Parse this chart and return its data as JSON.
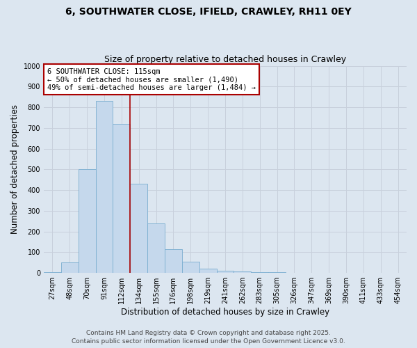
{
  "title_line1": "6, SOUTHWATER CLOSE, IFIELD, CRAWLEY, RH11 0EY",
  "title_line2": "Size of property relative to detached houses in Crawley",
  "xlabel": "Distribution of detached houses by size in Crawley",
  "ylabel": "Number of detached properties",
  "categories": [
    "27sqm",
    "48sqm",
    "70sqm",
    "91sqm",
    "112sqm",
    "134sqm",
    "155sqm",
    "176sqm",
    "198sqm",
    "219sqm",
    "241sqm",
    "262sqm",
    "283sqm",
    "305sqm",
    "326sqm",
    "347sqm",
    "369sqm",
    "390sqm",
    "411sqm",
    "433sqm",
    "454sqm"
  ],
  "values": [
    5,
    50,
    500,
    830,
    720,
    430,
    240,
    115,
    55,
    20,
    10,
    8,
    5,
    3,
    2,
    1,
    1,
    0,
    0,
    0,
    0
  ],
  "bar_color": "#c5d8ec",
  "bar_edgecolor": "#7aaed0",
  "vline_index": 4,
  "vline_color": "#aa0000",
  "annotation_text": "6 SOUTHWATER CLOSE: 115sqm\n← 50% of detached houses are smaller (1,490)\n49% of semi-detached houses are larger (1,484) →",
  "annotation_box_color": "#ffffff",
  "annotation_box_edgecolor": "#aa0000",
  "ylim": [
    0,
    1000
  ],
  "yticks": [
    0,
    100,
    200,
    300,
    400,
    500,
    600,
    700,
    800,
    900,
    1000
  ],
  "grid_color": "#c8d0dc",
  "bg_color": "#dce6f0",
  "footer_line1": "Contains HM Land Registry data © Crown copyright and database right 2025.",
  "footer_line2": "Contains public sector information licensed under the Open Government Licence v3.0.",
  "title_fontsize": 10,
  "subtitle_fontsize": 9,
  "axis_label_fontsize": 8.5,
  "tick_fontsize": 7,
  "annotation_fontsize": 7.5,
  "footer_fontsize": 6.5
}
